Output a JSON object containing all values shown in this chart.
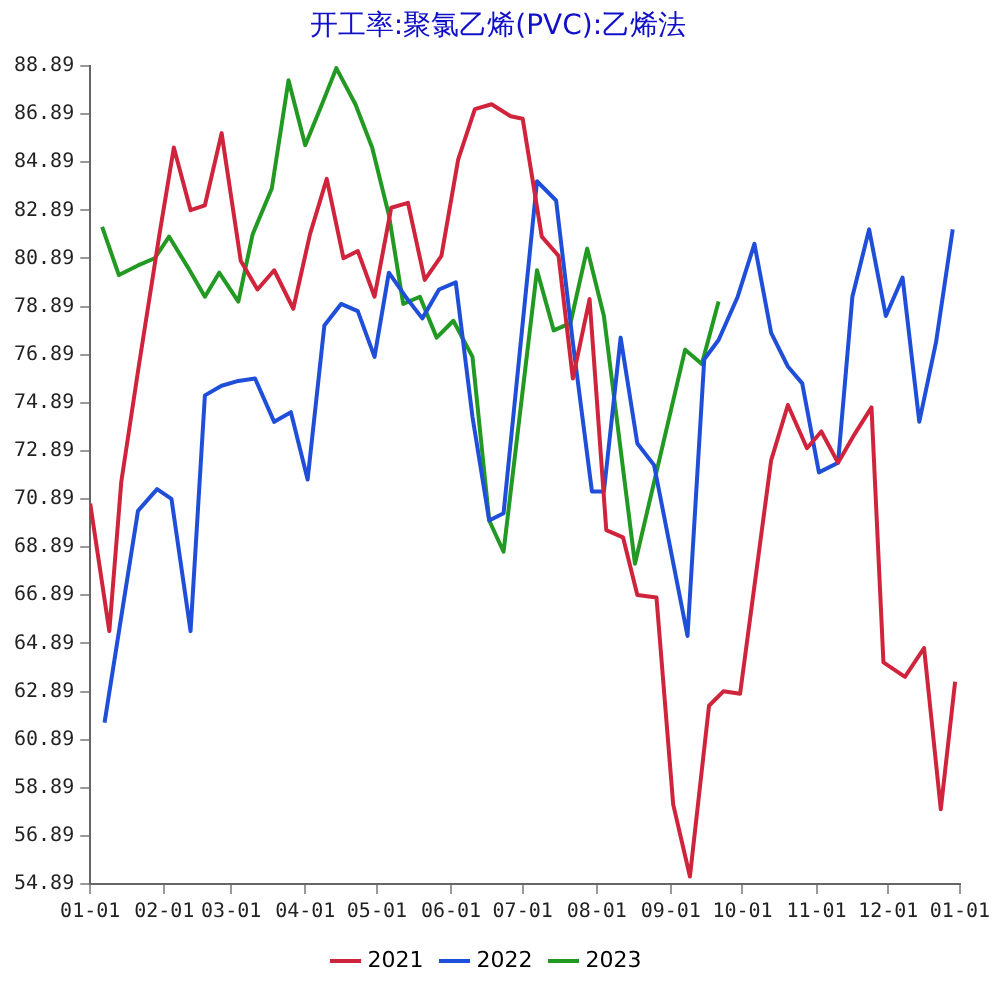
{
  "chart_data": {
    "type": "line",
    "title": "开工率:聚氯乙烯(PVC):乙烯法",
    "xlim": [
      "--01-01",
      "--12-31"
    ],
    "xticks": [
      {
        "value": "--01-01",
        "label": "01-01"
      },
      {
        "value": "--02-01",
        "label": "02-01"
      },
      {
        "value": "--03-01",
        "label": "03-01"
      },
      {
        "value": "--04-01",
        "label": "04-01"
      },
      {
        "value": "--05-01",
        "label": "05-01"
      },
      {
        "value": "--06-01",
        "label": "06-01"
      },
      {
        "value": "--07-01",
        "label": "07-01"
      },
      {
        "value": "--08-01",
        "label": "08-01"
      },
      {
        "value": "--09-01",
        "label": "09-01"
      },
      {
        "value": "--10-01",
        "label": "10-01"
      },
      {
        "value": "--11-01",
        "label": "11-01"
      },
      {
        "value": "--12-01",
        "label": "12-01"
      },
      {
        "value": "--12-31",
        "label": "01-01"
      }
    ],
    "ylim": [
      54.89,
      88.89
    ],
    "yticks": [
      54.89,
      56.89,
      58.89,
      60.89,
      62.89,
      64.89,
      66.89,
      68.89,
      70.89,
      72.89,
      74.89,
      76.89,
      78.89,
      80.89,
      82.89,
      84.89,
      86.89,
      88.89
    ],
    "grid": false,
    "legend": "bottom",
    "marker": "none",
    "line_style": "solid",
    "series": [
      {
        "name": "2021",
        "color": "#d0243c",
        "x": [
          "--01-01",
          "--01-09",
          "--01-14",
          "--01-21",
          "--01-30",
          "--02-05",
          "--02-12",
          "--02-18",
          "--02-25",
          "--03-05",
          "--03-12",
          "--03-19",
          "--03-27",
          "--04-03",
          "--04-10",
          "--04-17",
          "--04-23",
          "--04-30",
          "--05-07",
          "--05-14",
          "--05-21",
          "--05-28",
          "--06-04",
          "--06-11",
          "--06-18",
          "--06-26",
          "--07-01",
          "--07-09",
          "--07-16",
          "--07-22",
          "--07-29",
          "--08-05",
          "--08-12",
          "--08-18",
          "--08-26",
          "--09-02",
          "--09-09",
          "--09-17",
          "--09-23",
          "--09-30",
          "--10-13",
          "--10-20",
          "--10-28",
          "--11-03",
          "--11-10",
          "--11-17",
          "--11-24",
          "--11-29",
          "--12-08",
          "--12-16",
          "--12-23",
          "--12-29"
        ],
        "values": [
          70.7,
          65.4,
          71.6,
          76.2,
          81.9,
          85.5,
          82.9,
          83.1,
          86.1,
          80.8,
          79.6,
          80.4,
          78.8,
          81.9,
          84.2,
          80.9,
          81.2,
          79.3,
          83.0,
          83.2,
          80.0,
          81.0,
          85.0,
          87.1,
          87.3,
          86.8,
          86.7,
          81.8,
          81.0,
          75.9,
          79.2,
          69.6,
          69.3,
          66.9,
          66.8,
          58.2,
          55.2,
          62.3,
          62.9,
          62.8,
          72.5,
          74.8,
          73.0,
          73.7,
          72.4,
          73.6,
          74.7,
          64.1,
          63.5,
          64.7,
          58.0,
          63.3
        ]
      },
      {
        "name": "2022",
        "color": "#1f4fd8",
        "x": [
          "--01-07",
          "--01-21",
          "--01-29",
          "--02-04",
          "--02-12",
          "--02-18",
          "--02-25",
          "--03-04",
          "--03-11",
          "--03-19",
          "--03-26",
          "--04-02",
          "--04-09",
          "--04-16",
          "--04-23",
          "--04-30",
          "--05-06",
          "--05-13",
          "--05-20",
          "--05-27",
          "--06-03",
          "--06-10",
          "--06-17",
          "--06-23",
          "--07-07",
          "--07-15",
          "--07-22",
          "--07-30",
          "--08-04",
          "--08-11",
          "--08-18",
          "--08-25",
          "--09-08",
          "--09-15",
          "--09-21",
          "--09-29",
          "--10-06",
          "--10-13",
          "--10-20",
          "--10-26",
          "--11-02",
          "--11-10",
          "--11-16",
          "--11-23",
          "--11-30",
          "--12-07",
          "--12-14",
          "--12-21",
          "--12-28"
        ],
        "values": [
          61.6,
          70.4,
          71.3,
          70.9,
          65.4,
          75.2,
          75.6,
          75.8,
          75.9,
          74.1,
          74.5,
          71.7,
          78.1,
          79.0,
          78.7,
          76.8,
          80.3,
          79.3,
          78.4,
          79.6,
          79.9,
          74.3,
          70.0,
          70.3,
          84.1,
          83.3,
          77.4,
          71.2,
          71.2,
          77.6,
          73.2,
          72.3,
          65.2,
          76.7,
          77.5,
          79.3,
          81.5,
          77.8,
          76.4,
          75.7,
          72.0,
          72.4,
          79.3,
          82.1,
          78.5,
          80.1,
          74.1,
          77.4,
          82.1
        ]
      },
      {
        "name": "2023",
        "color": "#229922",
        "x": [
          "--01-06",
          "--01-13",
          "--01-21",
          "--01-28",
          "--02-03",
          "--02-11",
          "--02-18",
          "--02-24",
          "--03-04",
          "--03-10",
          "--03-18",
          "--03-25",
          "--04-01",
          "--04-08",
          "--04-14",
          "--04-22",
          "--04-29",
          "--05-06",
          "--05-12",
          "--05-19",
          "--05-26",
          "--06-02",
          "--06-10",
          "--06-17",
          "--06-23",
          "--07-07",
          "--07-14",
          "--07-21",
          "--07-28",
          "--08-04",
          "--08-17",
          "--09-07",
          "--09-14",
          "--09-21"
        ],
        "values": [
          82.2,
          80.2,
          80.6,
          80.9,
          81.8,
          80.5,
          79.3,
          80.3,
          79.1,
          81.9,
          83.8,
          88.3,
          85.6,
          87.3,
          88.8,
          87.3,
          85.5,
          82.7,
          79.0,
          79.3,
          77.6,
          78.3,
          76.8,
          70.0,
          68.7,
          80.4,
          77.9,
          78.2,
          81.3,
          78.5,
          68.2,
          77.1,
          76.5,
          79.1
        ]
      }
    ]
  }
}
